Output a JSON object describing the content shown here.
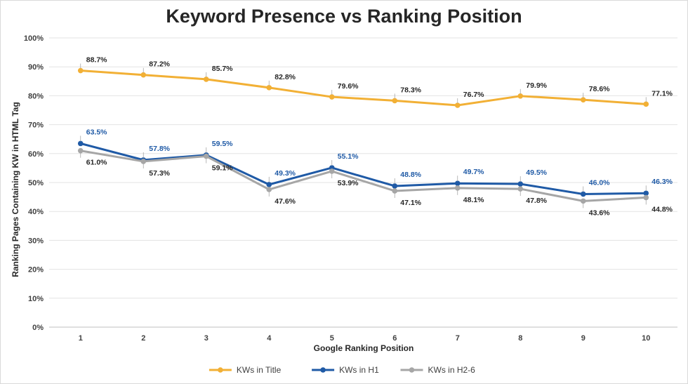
{
  "chart_data": {
    "type": "line",
    "title": "Keyword Presence vs Ranking Position",
    "xlabel": "Google Ranking Position",
    "ylabel": "Ranking Pages Containing KW in HTML Tag",
    "categories": [
      "1",
      "2",
      "3",
      "4",
      "5",
      "6",
      "7",
      "8",
      "9",
      "10"
    ],
    "ylim": [
      0,
      100
    ],
    "yticks": [
      "0%",
      "10%",
      "20%",
      "30%",
      "40%",
      "50%",
      "60%",
      "70%",
      "80%",
      "90%",
      "100%"
    ],
    "grid": true,
    "legend": "bottom",
    "series": [
      {
        "name": "KWs in Title",
        "color": "#F2B035",
        "values": [
          88.7,
          87.2,
          85.7,
          82.8,
          79.6,
          78.3,
          76.7,
          79.9,
          78.6,
          77.1
        ],
        "labels": [
          "88.7%",
          "87.2%",
          "85.7%",
          "82.8%",
          "79.6%",
          "78.3%",
          "76.7%",
          "79.9%",
          "78.6%",
          "77.1%"
        ]
      },
      {
        "name": "KWs in H1",
        "color": "#1F5AA6",
        "values": [
          63.5,
          57.8,
          59.5,
          49.3,
          55.1,
          48.8,
          49.7,
          49.5,
          46.0,
          46.3
        ],
        "labels": [
          "63.5%",
          "57.8%",
          "59.5%",
          "49.3%",
          "55.1%",
          "48.8%",
          "49.7%",
          "49.5%",
          "46.0%",
          "46.3%"
        ]
      },
      {
        "name": "KWs in H2-6",
        "color": "#A6A6A6",
        "values": [
          61.0,
          57.3,
          59.1,
          47.6,
          53.9,
          47.1,
          48.1,
          47.8,
          43.6,
          44.8
        ],
        "labels": [
          "61.0%",
          "57.3%",
          "59.1%",
          "47.6%",
          "53.9%",
          "47.1%",
          "48.1%",
          "47.8%",
          "43.6%",
          "44.8%"
        ]
      }
    ]
  }
}
